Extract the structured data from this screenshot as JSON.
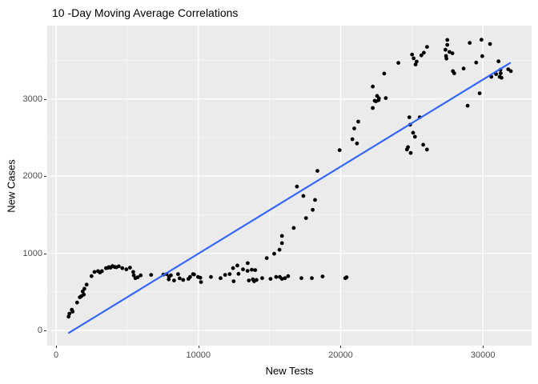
{
  "window": {
    "title": "10 -Day Moving Average Correlations"
  },
  "chart_data": {
    "type": "scatter",
    "title": "10 -Day Moving Average Correlations",
    "xlabel": "New Tests",
    "ylabel": "New Cases",
    "xlim": [
      -620,
      33420
    ],
    "ylim": [
      -195,
      3950
    ],
    "x_ticks": [
      0,
      10000,
      20000,
      30000
    ],
    "x_tick_labels": [
      "0",
      "10000",
      "20000",
      "30000"
    ],
    "x_minor_ticks": [
      5000,
      15000,
      25000
    ],
    "y_ticks": [
      0,
      1000,
      2000,
      3000
    ],
    "y_tick_labels": [
      "0",
      "1000",
      "2000",
      "3000"
    ],
    "y_minor_ticks": [
      500,
      1500,
      2500,
      3500
    ],
    "grid": true,
    "legend": "none",
    "style": {
      "panel_background": "#EBEBEB",
      "major_grid_color": "#FFFFFF",
      "minor_grid_color": "#FFFFFF",
      "point_color": "#000000",
      "point_radius": 2.4,
      "line_color": "#3366FF",
      "line_width": 2.2,
      "tick_text_color": "#4D4D4D",
      "axis_title_color": "#000000"
    },
    "trend_line": {
      "x1": 900,
      "y1": -30,
      "x2": 31900,
      "y2": 3465
    },
    "points": [
      [
        880,
        180
      ],
      [
        940,
        218
      ],
      [
        1110,
        269
      ],
      [
        1165,
        245
      ],
      [
        1480,
        363
      ],
      [
        1670,
        431
      ],
      [
        1785,
        445
      ],
      [
        1875,
        507
      ],
      [
        1954,
        466
      ],
      [
        1990,
        542
      ],
      [
        2150,
        595
      ],
      [
        2490,
        704
      ],
      [
        2700,
        759
      ],
      [
        2945,
        770
      ],
      [
        3080,
        752
      ],
      [
        3225,
        770
      ],
      [
        3510,
        808
      ],
      [
        3640,
        812
      ],
      [
        3710,
        822
      ],
      [
        3830,
        814
      ],
      [
        3960,
        835
      ],
      [
        4110,
        824
      ],
      [
        4240,
        821
      ],
      [
        4410,
        832
      ],
      [
        4655,
        808
      ],
      [
        4940,
        793
      ],
      [
        5195,
        814
      ],
      [
        5420,
        759
      ],
      [
        5460,
        715
      ],
      [
        5575,
        679
      ],
      [
        5740,
        690
      ],
      [
        5950,
        715
      ],
      [
        6685,
        721
      ],
      [
        7545,
        725
      ],
      [
        7770,
        731
      ],
      [
        7940,
        697
      ],
      [
        7920,
        663
      ],
      [
        8070,
        715
      ],
      [
        8295,
        648
      ],
      [
        8575,
        731
      ],
      [
        8685,
        676
      ],
      [
        8935,
        656
      ],
      [
        9305,
        669
      ],
      [
        9420,
        694
      ],
      [
        9625,
        731
      ],
      [
        9700,
        726
      ],
      [
        9980,
        694
      ],
      [
        10135,
        684
      ],
      [
        10190,
        628
      ],
      [
        10885,
        694
      ],
      [
        11560,
        679
      ],
      [
        11880,
        721
      ],
      [
        12200,
        731
      ],
      [
        12440,
        808
      ],
      [
        12480,
        638
      ],
      [
        12740,
        842
      ],
      [
        12820,
        735
      ],
      [
        13135,
        793
      ],
      [
        13470,
        873
      ],
      [
        13455,
        773
      ],
      [
        13550,
        648
      ],
      [
        13755,
        787
      ],
      [
        13830,
        663
      ],
      [
        13920,
        638
      ],
      [
        14000,
        783
      ],
      [
        14090,
        656
      ],
      [
        14485,
        679
      ],
      [
        15070,
        669
      ],
      [
        15465,
        694
      ],
      [
        15725,
        694
      ],
      [
        15875,
        669
      ],
      [
        16085,
        679
      ],
      [
        16310,
        704
      ],
      [
        17245,
        679
      ],
      [
        17975,
        679
      ],
      [
        18730,
        700
      ],
      [
        20325,
        679
      ],
      [
        20420,
        690
      ],
      [
        14805,
        939
      ],
      [
        15330,
        995
      ],
      [
        15705,
        1046
      ],
      [
        15875,
        1132
      ],
      [
        15875,
        1226
      ],
      [
        16705,
        1329
      ],
      [
        17565,
        1457
      ],
      [
        18035,
        1564
      ],
      [
        18200,
        1692
      ],
      [
        17380,
        1744
      ],
      [
        16930,
        1865
      ],
      [
        18370,
        2068
      ],
      [
        19930,
        2337
      ],
      [
        20830,
        2479
      ],
      [
        20960,
        2617
      ],
      [
        21150,
        2424
      ],
      [
        21240,
        2707
      ],
      [
        22255,
        2883
      ],
      [
        22255,
        3160
      ],
      [
        22480,
        2970
      ],
      [
        22560,
        3039
      ],
      [
        22670,
        2984
      ],
      [
        22390,
        2977
      ],
      [
        22690,
        3008
      ],
      [
        23175,
        3011
      ],
      [
        23060,
        3329
      ],
      [
        24055,
        3467
      ],
      [
        24660,
        2345
      ],
      [
        24730,
        2376
      ],
      [
        24830,
        2762
      ],
      [
        24885,
        2666
      ],
      [
        24925,
        2300
      ],
      [
        25095,
        2562
      ],
      [
        25220,
        2511
      ],
      [
        25560,
        2762
      ],
      [
        25800,
        2407
      ],
      [
        26065,
        2345
      ],
      [
        25020,
        3575
      ],
      [
        25130,
        3526
      ],
      [
        25340,
        3484
      ],
      [
        25265,
        3446
      ],
      [
        25675,
        3564
      ],
      [
        25845,
        3599
      ],
      [
        26070,
        3674
      ],
      [
        27365,
        3637
      ],
      [
        27495,
        3764
      ],
      [
        27495,
        3700
      ],
      [
        27645,
        3609
      ],
      [
        27405,
        3557
      ],
      [
        27440,
        3523
      ],
      [
        27855,
        3591
      ],
      [
        27890,
        3360
      ],
      [
        27985,
        3332
      ],
      [
        28645,
        3394
      ],
      [
        28925,
        2912
      ],
      [
        29070,
        3726
      ],
      [
        29525,
        3471
      ],
      [
        29770,
        3073
      ],
      [
        29900,
        3767
      ],
      [
        29955,
        3554
      ],
      [
        30500,
        3712
      ],
      [
        30590,
        3287
      ],
      [
        30930,
        3322
      ],
      [
        31095,
        3487
      ],
      [
        31175,
        3287
      ],
      [
        31250,
        3332
      ],
      [
        31305,
        3274
      ],
      [
        31230,
        3378
      ],
      [
        31775,
        3384
      ],
      [
        31965,
        3360
      ]
    ]
  }
}
